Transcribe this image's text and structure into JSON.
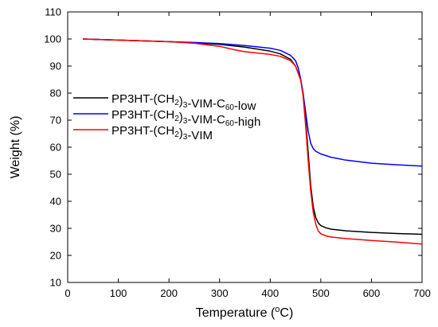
{
  "chart_data": {
    "type": "line",
    "xlabel": "Temperature (°C)",
    "xlabel_parts": {
      "before": "Temperature (",
      "super": "o",
      "after": "C)"
    },
    "ylabel": "Weight (%)",
    "xlim": [
      0,
      700
    ],
    "ylim": [
      10,
      110
    ],
    "xticks": [
      0,
      100,
      200,
      300,
      400,
      500,
      600,
      700
    ],
    "yticks": [
      10,
      20,
      30,
      40,
      50,
      60,
      70,
      80,
      90,
      100,
      110
    ],
    "grid": false,
    "legend_position": "center-left",
    "series": [
      {
        "name": "PP3HT-(CH2)3-VIM-C60-low",
        "name_parts": [
          {
            "t": "PP3HT-(CH",
            "sub": false
          },
          {
            "t": "2",
            "sub": true
          },
          {
            "t": ")",
            "sub": false
          },
          {
            "t": "3",
            "sub": true
          },
          {
            "t": "-VIM-C",
            "sub": false
          },
          {
            "t": "60",
            "sub": true
          },
          {
            "t": "-low",
            "sub": false
          }
        ],
        "color": "#000000",
        "x": [
          30,
          100,
          200,
          250,
          300,
          350,
          400,
          420,
          440,
          450,
          460,
          465,
          470,
          475,
          480,
          485,
          490,
          495,
          500,
          510,
          520,
          550,
          600,
          650,
          700
        ],
        "y": [
          100,
          99.6,
          99.0,
          98.6,
          98.0,
          97.0,
          95.5,
          94.5,
          92.5,
          90.0,
          85.0,
          80.0,
          70.0,
          58.0,
          46.0,
          38.0,
          34.0,
          32.0,
          31.0,
          30.2,
          29.7,
          29.1,
          28.5,
          28.1,
          27.8
        ]
      },
      {
        "name": "PP3HT-(CH2)3-VIM-C60-high",
        "name_parts": [
          {
            "t": "PP3HT-(CH",
            "sub": false
          },
          {
            "t": "2",
            "sub": true
          },
          {
            "t": ")",
            "sub": false
          },
          {
            "t": "3",
            "sub": true
          },
          {
            "t": "-VIM-C",
            "sub": false
          },
          {
            "t": "60",
            "sub": true
          },
          {
            "t": "-high",
            "sub": false
          }
        ],
        "color": "#0000ff",
        "x": [
          30,
          100,
          200,
          250,
          300,
          350,
          400,
          420,
          440,
          450,
          455,
          460,
          465,
          470,
          475,
          480,
          485,
          490,
          500,
          520,
          550,
          600,
          650,
          700
        ],
        "y": [
          100,
          99.6,
          99.0,
          98.7,
          98.3,
          97.6,
          96.6,
          95.8,
          94.0,
          92.0,
          89.5,
          85.5,
          80.0,
          73.0,
          66.0,
          61.5,
          59.5,
          58.5,
          57.5,
          56.3,
          55.2,
          54.1,
          53.5,
          53.0
        ]
      },
      {
        "name": "PP3HT-(CH2)3-VIM",
        "name_parts": [
          {
            "t": "PP3HT-(CH",
            "sub": false
          },
          {
            "t": "2",
            "sub": true
          },
          {
            "t": ")",
            "sub": false
          },
          {
            "t": "3",
            "sub": true
          },
          {
            "t": "-VIM",
            "sub": false
          }
        ],
        "color": "#ff0000",
        "x": [
          30,
          100,
          200,
          250,
          300,
          330,
          350,
          400,
          420,
          440,
          450,
          460,
          465,
          470,
          475,
          480,
          485,
          490,
          495,
          500,
          510,
          520,
          550,
          600,
          650,
          700
        ],
        "y": [
          100,
          99.6,
          99.0,
          98.4,
          97.3,
          96.0,
          95.3,
          94.3,
          93.6,
          92.0,
          90.0,
          85.0,
          79.0,
          68.0,
          55.0,
          44.0,
          36.0,
          31.5,
          29.0,
          28.0,
          27.2,
          26.8,
          26.2,
          25.5,
          24.9,
          24.2
        ]
      }
    ]
  }
}
